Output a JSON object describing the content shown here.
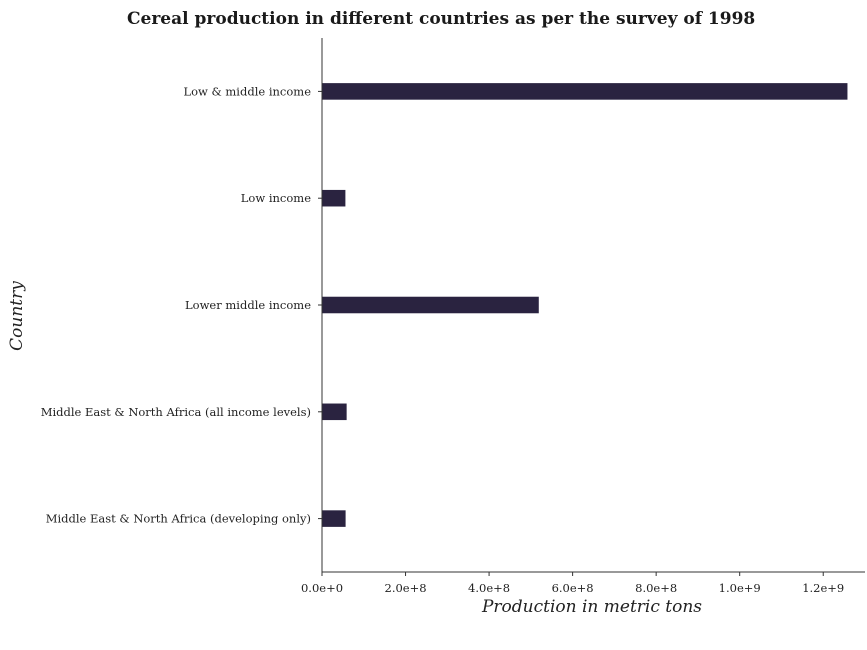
{
  "chart_data": {
    "type": "bar",
    "orientation": "horizontal",
    "title": "Cereal production in different countries as per the survey of 1998",
    "xlabel": "Production in metric tons",
    "ylabel": "Country",
    "categories": [
      "Low & middle income",
      "Low income",
      "Lower middle income",
      "Middle East & North Africa (all income levels)",
      "Middle East & North Africa (developing only)"
    ],
    "values": [
      1258000000,
      56000000,
      519000000,
      59000000,
      56500000
    ],
    "xlim": [
      0,
      1300000000
    ],
    "xticks": [
      0,
      200000000,
      400000000,
      600000000,
      800000000,
      1000000000,
      1200000000
    ],
    "xtick_labels": [
      "0.0e+0",
      "2.0e+8",
      "4.0e+8",
      "6.0e+8",
      "8.0e+8",
      "1.0e+9",
      "1.2e+9"
    ],
    "grid": false,
    "legend": "none",
    "bar_color": "#2a2340"
  }
}
